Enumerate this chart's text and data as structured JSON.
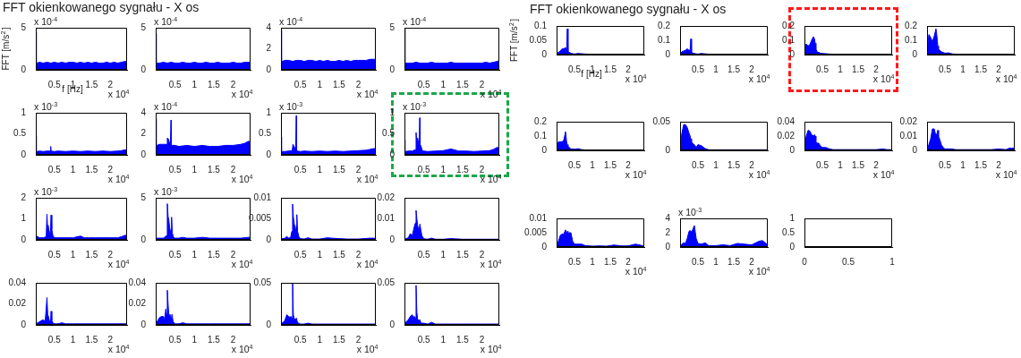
{
  "chart_data": [
    {
      "type": "area",
      "title": "FFT okienkowanego sygnału - X os",
      "ylabel": "FFT [m/s$^{2}$]",
      "xlabel": "f [Hz]",
      "annotations": [
        "x 10$^{-4}$",
        "x 10$^{4}$"
      ],
      "color": "#0000ff",
      "xlim": [
        0,
        2.45
      ],
      "ylim": [
        0,
        5
      ],
      "xticks": [
        0.5,
        1,
        1.5,
        2
      ],
      "yticks": [
        0,
        5
      ],
      "x": [
        0,
        0.015,
        0.03,
        0.1,
        0.2,
        0.3,
        0.4,
        0.5,
        0.6,
        0.7,
        0.8,
        0.9,
        1,
        1.1,
        1.2,
        1.3,
        1.4,
        1.5,
        1.6,
        1.7,
        1.8,
        1.9,
        2,
        2.1,
        2.2,
        2.3,
        2.4,
        2.45
      ],
      "values": [
        4.5,
        0.9,
        0.8,
        0.9,
        0.8,
        0.9,
        0.8,
        0.9,
        0.8,
        0.9,
        0.8,
        0.9,
        0.9,
        0.8,
        0.9,
        0.8,
        0.9,
        0.8,
        0.9,
        0.8,
        0.8,
        0.9,
        0.8,
        0.9,
        0.8,
        0.9,
        1,
        1
      ]
    },
    {
      "type": "area",
      "annotations": [
        "x 10$^{-4}$",
        "x 10$^{4}$"
      ],
      "color": "#0000ff",
      "xlim": [
        0,
        2.45
      ],
      "ylim": [
        0,
        5
      ],
      "xticks": [
        0.5,
        1,
        1.5,
        2
      ],
      "yticks": [
        0,
        5
      ],
      "x": [
        0,
        0.015,
        0.03,
        0.1,
        0.2,
        0.3,
        0.4,
        0.5,
        0.6,
        0.7,
        0.8,
        0.9,
        1,
        1.1,
        1.2,
        1.3,
        1.4,
        1.5,
        1.6,
        1.7,
        1.8,
        1.9,
        2,
        2.1,
        2.2,
        2.3,
        2.4,
        2.45
      ],
      "values": [
        4.3,
        0.9,
        0.8,
        0.8,
        0.9,
        0.8,
        0.9,
        0.8,
        0.8,
        0.9,
        0.8,
        0.8,
        0.9,
        0.8,
        0.8,
        0.9,
        0.8,
        0.8,
        0.9,
        0.8,
        0.8,
        0.8,
        0.9,
        0.8,
        0.8,
        0.9,
        0.9,
        0.9
      ]
    },
    {
      "type": "area",
      "annotations": [
        "x 10$^{-4}$",
        "x 10$^{4}$"
      ],
      "color": "#0000ff",
      "xlim": [
        0,
        2.45
      ],
      "ylim": [
        0,
        4
      ],
      "xticks": [
        0.5,
        1,
        1.5,
        2
      ],
      "yticks": [
        0,
        2,
        4
      ],
      "x": [
        0,
        0.015,
        0.03,
        0.1,
        0.2,
        0.3,
        0.4,
        0.5,
        0.6,
        0.7,
        0.8,
        0.9,
        1,
        1.1,
        1.2,
        1.3,
        1.4,
        1.5,
        1.6,
        1.7,
        1.8,
        1.9,
        2,
        2.1,
        2.2,
        2.3,
        2.4,
        2.45
      ],
      "values": [
        3.8,
        0.9,
        0.8,
        0.9,
        0.9,
        0.8,
        0.9,
        0.9,
        0.8,
        0.9,
        0.9,
        0.8,
        0.9,
        0.8,
        0.9,
        0.8,
        0.8,
        0.9,
        0.8,
        0.9,
        0.8,
        0.9,
        0.9,
        0.9,
        0.9,
        1,
        1,
        1
      ]
    },
    {
      "type": "area",
      "annotations": [
        "x 10$^{-4}$",
        "x 10$^{4}$"
      ],
      "color": "#0000ff",
      "xlim": [
        0,
        2.45
      ],
      "ylim": [
        0,
        5
      ],
      "xticks": [
        0.5,
        1,
        1.5,
        2
      ],
      "yticks": [
        0,
        5
      ],
      "x": [
        0,
        0.015,
        0.03,
        0.1,
        0.2,
        0.3,
        0.4,
        0.5,
        0.6,
        0.7,
        0.8,
        0.9,
        1,
        1.1,
        1.2,
        1.3,
        1.4,
        1.5,
        1.6,
        1.7,
        1.8,
        1.9,
        2,
        2.1,
        2.2,
        2.3,
        2.4,
        2.45
      ],
      "values": [
        5,
        0.9,
        0.8,
        0.8,
        0.8,
        0.9,
        0.8,
        0.8,
        0.8,
        0.9,
        0.8,
        0.8,
        0.8,
        0.8,
        0.9,
        0.8,
        0.8,
        0.8,
        0.8,
        0.8,
        0.8,
        0.8,
        0.8,
        0.9,
        0.8,
        0.9,
        1,
        1.1
      ]
    },
    {
      "type": "area",
      "annotations": [
        "x 10$^{-3}$",
        "x 10$^{4}$"
      ],
      "color": "#0000ff",
      "xlim": [
        0,
        2.45
      ],
      "ylim": [
        0,
        1
      ],
      "xticks": [
        0.5,
        1,
        1.5,
        2
      ],
      "yticks": [
        0,
        0.5,
        1
      ],
      "x": [
        0,
        0.015,
        0.03,
        0.1,
        0.2,
        0.3,
        0.39,
        0.4,
        0.41,
        0.5,
        0.6,
        0.8,
        1,
        1.2,
        1.4,
        1.6,
        1.8,
        2,
        2.2,
        2.3,
        2.4,
        2.45
      ],
      "values": [
        0.45,
        0.1,
        0.08,
        0.09,
        0.08,
        0.09,
        0.09,
        0.2,
        0.09,
        0.08,
        0.09,
        0.08,
        0.09,
        0.08,
        0.09,
        0.08,
        0.09,
        0.08,
        0.09,
        0.1,
        0.12,
        0.1
      ]
    },
    {
      "type": "area",
      "annotations": [
        "x 10$^{-4}$",
        "x 10$^{4}$"
      ],
      "color": "#0000ff",
      "xlim": [
        0,
        2.45
      ],
      "ylim": [
        0,
        4
      ],
      "xticks": [
        0.5,
        1,
        1.5,
        2
      ],
      "yticks": [
        0,
        2,
        4
      ],
      "x": [
        0,
        0.015,
        0.03,
        0.1,
        0.2,
        0.28,
        0.3,
        0.33,
        0.35,
        0.38,
        0.395,
        0.405,
        0.42,
        0.5,
        0.6,
        0.8,
        1,
        1.2,
        1.4,
        1.6,
        1.8,
        2,
        2.2,
        2.3,
        2.4,
        2.45
      ],
      "values": [
        3.4,
        1,
        0.9,
        1,
        1,
        1,
        1.6,
        1.5,
        1.2,
        1,
        3.3,
        1,
        0.9,
        0.9,
        0.8,
        0.9,
        0.8,
        0.9,
        0.8,
        0.8,
        0.9,
        0.9,
        1,
        1.1,
        1.3,
        1.2
      ]
    },
    {
      "type": "area",
      "annotations": [
        "x 10$^{-3}$",
        "x 10$^{4}$"
      ],
      "color": "#0000ff",
      "xlim": [
        0,
        2.45
      ],
      "ylim": [
        0,
        1
      ],
      "xticks": [
        0.5,
        1,
        1.5,
        2
      ],
      "yticks": [
        0,
        0.5,
        1
      ],
      "x": [
        0,
        0.015,
        0.03,
        0.1,
        0.2,
        0.29,
        0.31,
        0.33,
        0.35,
        0.38,
        0.395,
        0.405,
        0.42,
        0.5,
        0.6,
        0.8,
        1,
        1.2,
        1.4,
        1.6,
        1.8,
        2,
        2.2,
        2.3,
        2.4,
        2.45
      ],
      "values": [
        0.42,
        0.1,
        0.08,
        0.08,
        0.09,
        0.1,
        0.25,
        0.22,
        0.18,
        0.12,
        0.93,
        0.12,
        0.09,
        0.08,
        0.09,
        0.08,
        0.09,
        0.08,
        0.09,
        0.08,
        0.09,
        0.1,
        0.11,
        0.13,
        0.15,
        0.14
      ]
    },
    {
      "type": "area",
      "annotations": [
        "x 10$^{-3}$",
        "x 10$^{4}$"
      ],
      "color": "#0000ff",
      "xlim": [
        0,
        2.45
      ],
      "ylim": [
        0,
        1
      ],
      "xticks": [
        0.5,
        1,
        1.5,
        2
      ],
      "yticks": [
        0,
        0.5,
        1
      ],
      "x": [
        0,
        0.015,
        0.03,
        0.1,
        0.2,
        0.28,
        0.3,
        0.32,
        0.34,
        0.36,
        0.38,
        0.395,
        0.405,
        0.43,
        0.46,
        0.5,
        0.6,
        0.8,
        1,
        1.2,
        1.4,
        1.6,
        1.8,
        2,
        2.2,
        2.3,
        2.4,
        2.45
      ],
      "values": [
        0.35,
        0.1,
        0.08,
        0.09,
        0.09,
        0.12,
        0.53,
        0.3,
        0.4,
        0.3,
        0.22,
        0.88,
        0.25,
        0.2,
        0.1,
        0.09,
        0.08,
        0.09,
        0.1,
        0.14,
        0.09,
        0.09,
        0.08,
        0.09,
        0.1,
        0.13,
        0.18,
        0.15
      ]
    },
    {
      "type": "area",
      "annotations": [
        "x 10$^{-3}$",
        "x 10$^{4}$"
      ],
      "color": "#0000ff",
      "xlim": [
        0,
        2.45
      ],
      "ylim": [
        0,
        2
      ],
      "xticks": [
        0.5,
        1,
        1.5,
        2
      ],
      "yticks": [
        0,
        1,
        2
      ],
      "x": [
        0,
        0.1,
        0.2,
        0.28,
        0.3,
        0.315,
        0.33,
        0.35,
        0.37,
        0.39,
        0.41,
        0.43,
        0.46,
        0.5,
        0.6,
        0.8,
        1,
        1.2,
        1.3,
        1.4,
        1.6,
        1.8,
        2,
        2.2,
        2.3,
        2.4,
        2.45
      ],
      "values": [
        0.2,
        0.1,
        0.1,
        0.15,
        1.22,
        0.6,
        0.7,
        0.5,
        0.35,
        0.2,
        1.18,
        0.5,
        0.2,
        0.1,
        0.1,
        0.1,
        0.1,
        0.18,
        0.1,
        0.1,
        0.1,
        0.1,
        0.1,
        0.1,
        0.15,
        0.22,
        0.2
      ]
    },
    {
      "type": "area",
      "annotations": [
        "x 10$^{-3}$",
        "x 10$^{4}$"
      ],
      "color": "#0000ff",
      "xlim": [
        0,
        2.45
      ],
      "ylim": [
        0,
        5
      ],
      "xticks": [
        0.5,
        1,
        1.5,
        2
      ],
      "yticks": [
        0,
        5
      ],
      "x": [
        0,
        0.1,
        0.2,
        0.28,
        0.3,
        0.32,
        0.34,
        0.36,
        0.38,
        0.4,
        0.41,
        0.43,
        0.46,
        0.5,
        0.6,
        0.7,
        0.8,
        1,
        1.2,
        1.4,
        1.6,
        1.8,
        2,
        2.2,
        2.4,
        2.45
      ],
      "values": [
        0.2,
        0.2,
        0.2,
        0.5,
        4.3,
        2.8,
        2.3,
        1.5,
        1,
        1.2,
        2.7,
        0.8,
        0.3,
        0.2,
        0.2,
        0.3,
        0.2,
        0.2,
        0.3,
        0.2,
        0.2,
        0.2,
        0.2,
        0.2,
        0.3,
        0.3
      ]
    },
    {
      "type": "area",
      "annotations": [
        "x 10$^{4}$"
      ],
      "color": "#0000ff",
      "xlim": [
        0,
        2.45
      ],
      "ylim": [
        0,
        0.01
      ],
      "xticks": [
        0.5,
        1,
        1.5,
        2
      ],
      "yticks": [
        0,
        0.005,
        0.01
      ],
      "x": [
        0,
        0.1,
        0.15,
        0.2,
        0.25,
        0.28,
        0.3,
        0.32,
        0.34,
        0.36,
        0.38,
        0.4,
        0.41,
        0.43,
        0.46,
        0.5,
        0.6,
        0.7,
        0.8,
        1,
        1.2,
        1.3,
        1.5,
        1.7,
        2,
        2.3,
        2.4,
        2.45
      ],
      "values": [
        0.0002,
        0.0004,
        0.0008,
        0.0004,
        0.0006,
        0.002,
        0.0085,
        0.0055,
        0.004,
        0.003,
        0.002,
        0.0035,
        0.006,
        0.002,
        0.0008,
        0.0003,
        0.0002,
        0.0005,
        0.0002,
        0.0002,
        0.0005,
        0.0004,
        0.0003,
        0.0002,
        0.0002,
        0.0004,
        0.0004,
        0.0003
      ]
    },
    {
      "type": "area",
      "annotations": [
        "x 10$^{4}$"
      ],
      "color": "#0000ff",
      "xlim": [
        0,
        2.45
      ],
      "ylim": [
        0,
        0.02
      ],
      "xticks": [
        0.5,
        1,
        1.5,
        2
      ],
      "yticks": [
        0,
        0.01,
        0.02
      ],
      "x": [
        0,
        0.1,
        0.15,
        0.2,
        0.25,
        0.28,
        0.3,
        0.32,
        0.34,
        0.37,
        0.4,
        0.42,
        0.45,
        0.5,
        0.6,
        0.7,
        0.8,
        1,
        1.2,
        1.3,
        1.5,
        1.8,
        2.1,
        2.4,
        2.45
      ],
      "values": [
        0.0003,
        0.001,
        0.003,
        0.002,
        0.006,
        0.008,
        0.014,
        0.01,
        0.007,
        0.004,
        0.0075,
        0.005,
        0.002,
        0.0005,
        0.0003,
        0.0008,
        0.0003,
        0.0003,
        0.0006,
        0.0005,
        0.0003,
        0.0003,
        0.0003,
        0.0003,
        0.0003
      ]
    },
    {
      "type": "area",
      "annotations": [
        "x 10$^{4}$"
      ],
      "color": "#0000ff",
      "xlim": [
        0,
        2.45
      ],
      "ylim": [
        0,
        0.04
      ],
      "xticks": [
        0.5,
        1,
        1.5,
        2
      ],
      "yticks": [
        0,
        0.02,
        0.04
      ],
      "x": [
        0,
        0.05,
        0.1,
        0.15,
        0.2,
        0.25,
        0.28,
        0.3,
        0.32,
        0.34,
        0.37,
        0.4,
        0.41,
        0.43,
        0.46,
        0.5,
        0.6,
        0.7,
        0.8,
        1,
        1.4,
        1.8,
        2.2,
        2.45
      ],
      "values": [
        0.001,
        0.002,
        0.003,
        0.004,
        0.005,
        0.003,
        0.016,
        0.026,
        0.01,
        0.008,
        0.003,
        0.005,
        0.013,
        0.004,
        0.002,
        0.001,
        0.001,
        0.002,
        0.001,
        0.001,
        0.001,
        0.001,
        0.001,
        0.001
      ]
    },
    {
      "type": "area",
      "annotations": [
        "x 10$^{4}$"
      ],
      "color": "#0000ff",
      "xlim": [
        0,
        2.45
      ],
      "ylim": [
        0,
        0.04
      ],
      "xticks": [
        0.5,
        1,
        1.5,
        2
      ],
      "yticks": [
        0,
        0.02,
        0.04
      ],
      "x": [
        0,
        0.05,
        0.1,
        0.15,
        0.2,
        0.23,
        0.26,
        0.28,
        0.3,
        0.32,
        0.34,
        0.37,
        0.4,
        0.42,
        0.45,
        0.5,
        0.6,
        0.7,
        0.8,
        1,
        1.4,
        1.8,
        2.2,
        2.45
      ],
      "values": [
        0.001,
        0.004,
        0.007,
        0.008,
        0.008,
        0.005,
        0.015,
        0.01,
        0.033,
        0.02,
        0.008,
        0.01,
        0.004,
        0.01,
        0.003,
        0.001,
        0.001,
        0.002,
        0.001,
        0.001,
        0.001,
        0.001,
        0.001,
        0.001
      ]
    },
    {
      "type": "area",
      "annotations": [
        "x 10$^{4}$"
      ],
      "color": "#0000ff",
      "xlim": [
        0,
        2.45
      ],
      "ylim": [
        0,
        0.05
      ],
      "xticks": [
        0.5,
        1,
        1.5,
        2
      ],
      "yticks": [
        0,
        0.05
      ],
      "x": [
        0,
        0.05,
        0.1,
        0.15,
        0.2,
        0.23,
        0.26,
        0.28,
        0.3,
        0.32,
        0.34,
        0.37,
        0.4,
        0.42,
        0.45,
        0.5,
        0.6,
        0.7,
        0.8,
        1,
        1.4,
        1.8,
        2.2,
        2.45
      ],
      "values": [
        0.001,
        0.003,
        0.005,
        0.012,
        0.01,
        0.009,
        0.01,
        0.008,
        0.05,
        0.012,
        0.008,
        0.006,
        0.008,
        0.004,
        0.002,
        0.001,
        0.001,
        0.002,
        0.001,
        0.001,
        0.001,
        0.001,
        0.001,
        0.001
      ]
    },
    {
      "type": "area",
      "annotations": [
        "x 10$^{4}$"
      ],
      "color": "#0000ff",
      "xlim": [
        0,
        2.45
      ],
      "ylim": [
        0,
        0.05
      ],
      "xticks": [
        0.5,
        1,
        1.5,
        2
      ],
      "yticks": [
        0,
        0.05
      ],
      "x": [
        0,
        0.05,
        0.1,
        0.15,
        0.2,
        0.23,
        0.26,
        0.28,
        0.3,
        0.32,
        0.34,
        0.37,
        0.4,
        0.42,
        0.45,
        0.5,
        0.6,
        0.7,
        0.8,
        1,
        1.4,
        1.8,
        2.2,
        2.45
      ],
      "values": [
        0.001,
        0.004,
        0.006,
        0.01,
        0.012,
        0.009,
        0.01,
        0.008,
        0.047,
        0.015,
        0.007,
        0.005,
        0.006,
        0.003,
        0.002,
        0.002,
        0.001,
        0.003,
        0.001,
        0.001,
        0.001,
        0.001,
        0.001,
        0.001
      ]
    },
    {
      "type": "area",
      "title": "FFT okienkowanego sygnału - X os",
      "ylabel": "FFT [m/s$^{2}$]",
      "xlabel": "f [Hz]",
      "annotations": [
        "x 10$^{4}$"
      ],
      "color": "#0000ff",
      "xlim": [
        0,
        2.45
      ],
      "ylim": [
        0,
        0.1
      ],
      "xticks": [
        0.5,
        1,
        1.5,
        2
      ],
      "yticks": [
        0,
        0.05,
        0.1
      ],
      "x": [
        0,
        0.05,
        0.1,
        0.15,
        0.2,
        0.25,
        0.28,
        0.3,
        0.32,
        0.35,
        0.4,
        0.45,
        0.5,
        0.6,
        0.7,
        0.8,
        1,
        1.2,
        1.4,
        1.6,
        1.8,
        2,
        2.2,
        2.3,
        2.45
      ],
      "values": [
        0.002,
        0.008,
        0.012,
        0.02,
        0.02,
        0.025,
        0.015,
        0.09,
        0.01,
        0.008,
        0.005,
        0.003,
        0.002,
        0.004,
        0.003,
        0.002,
        0.001,
        0.001,
        0.001,
        0.001,
        0.001,
        0.001,
        0.001,
        0.001,
        0.001
      ]
    },
    {
      "type": "area",
      "annotations": [
        "x 10$^{4}$"
      ],
      "color": "#0000ff",
      "xlim": [
        0,
        2.45
      ],
      "ylim": [
        0,
        0.2
      ],
      "xticks": [
        0.5,
        1,
        1.5,
        2
      ],
      "yticks": [
        0,
        0.1,
        0.2
      ],
      "x": [
        0,
        0.05,
        0.1,
        0.15,
        0.2,
        0.25,
        0.28,
        0.3,
        0.32,
        0.35,
        0.4,
        0.45,
        0.5,
        0.6,
        0.7,
        0.8,
        1,
        1.2,
        1.4,
        1.6,
        1.8,
        2,
        2.2,
        2.3,
        2.45
      ],
      "values": [
        0.005,
        0.02,
        0.025,
        0.03,
        0.04,
        0.03,
        0.03,
        0.11,
        0.02,
        0.01,
        0.008,
        0.005,
        0.004,
        0.008,
        0.005,
        0.003,
        0.002,
        0.002,
        0.002,
        0.002,
        0.002,
        0.002,
        0.002,
        0.002,
        0.002
      ]
    },
    {
      "type": "area",
      "annotations": [
        "x 10$^{4}$"
      ],
      "color": "#0000ff",
      "xlim": [
        0,
        2.45
      ],
      "ylim": [
        0,
        0.2
      ],
      "xticks": [
        0.5,
        1,
        1.5,
        2
      ],
      "yticks": [
        0,
        0.1,
        0.2
      ],
      "x": [
        0,
        0.05,
        0.1,
        0.15,
        0.2,
        0.25,
        0.28,
        0.3,
        0.32,
        0.35,
        0.4,
        0.45,
        0.5,
        0.6,
        0.7,
        0.8,
        1,
        1.2,
        1.4,
        1.6,
        1.8,
        2,
        2.2,
        2.3,
        2.45
      ],
      "values": [
        0.02,
        0.075,
        0.06,
        0.07,
        0.1,
        0.125,
        0.11,
        0.08,
        0.04,
        0.02,
        0.015,
        0.01,
        0.008,
        0.006,
        0.004,
        0.003,
        0.002,
        0.002,
        0.002,
        0.002,
        0.002,
        0.002,
        0.002,
        0.002,
        0.002
      ]
    },
    {
      "type": "area",
      "annotations": [
        "x 10$^{4}$"
      ],
      "color": "#0000ff",
      "xlim": [
        0,
        2.45
      ],
      "ylim": [
        0,
        0.2
      ],
      "xticks": [
        0.5,
        1,
        1.5,
        2
      ],
      "yticks": [
        0,
        0.1,
        0.2
      ],
      "x": [
        0,
        0.05,
        0.1,
        0.15,
        0.2,
        0.25,
        0.28,
        0.3,
        0.32,
        0.35,
        0.4,
        0.45,
        0.5,
        0.6,
        0.7,
        0.8,
        1,
        1.2,
        1.4,
        1.6,
        1.8,
        2,
        2.2,
        2.3,
        2.45
      ],
      "values": [
        0.02,
        0.14,
        0.12,
        0.09,
        0.13,
        0.18,
        0.12,
        0.06,
        0.04,
        0.03,
        0.02,
        0.015,
        0.01,
        0.012,
        0.005,
        0.003,
        0.002,
        0.002,
        0.002,
        0.002,
        0.002,
        0.002,
        0.002,
        0.002,
        0.002
      ]
    },
    {
      "type": "area",
      "annotations": [
        "x 10$^{4}$"
      ],
      "color": "#0000ff",
      "xlim": [
        0,
        2.45
      ],
      "ylim": [
        0,
        0.2
      ],
      "xticks": [
        0.5,
        1,
        1.5,
        2
      ],
      "yticks": [
        0,
        0.1,
        0.2
      ],
      "x": [
        0,
        0.05,
        0.1,
        0.15,
        0.2,
        0.25,
        0.28,
        0.3,
        0.32,
        0.35,
        0.4,
        0.45,
        0.5,
        0.6,
        0.7,
        0.8,
        1,
        1.2,
        1.4,
        1.6,
        1.8,
        2,
        2.2,
        2.3,
        2.45
      ],
      "values": [
        0.01,
        0.06,
        0.06,
        0.06,
        0.07,
        0.13,
        0.06,
        0.04,
        0.03,
        0.02,
        0.01,
        0.01,
        0.008,
        0.012,
        0.005,
        0.003,
        0.002,
        0.002,
        0.002,
        0.002,
        0.002,
        0.002,
        0.002,
        0.002,
        0.002
      ]
    },
    {
      "type": "area",
      "annotations": [
        "x 10$^{4}$"
      ],
      "color": "#0000ff",
      "xlim": [
        0,
        2.45
      ],
      "ylim": [
        0,
        0.05
      ],
      "xticks": [
        0.5,
        1,
        1.5,
        2
      ],
      "yticks": [
        0,
        0.05
      ],
      "x": [
        0,
        0.05,
        0.1,
        0.15,
        0.2,
        0.25,
        0.28,
        0.3,
        0.32,
        0.35,
        0.4,
        0.45,
        0.5,
        0.6,
        0.7,
        0.8,
        1,
        1.2,
        1.4,
        1.6,
        1.8,
        2,
        2.2,
        2.3,
        2.45
      ],
      "values": [
        0.005,
        0.03,
        0.045,
        0.045,
        0.04,
        0.03,
        0.025,
        0.02,
        0.015,
        0.012,
        0.01,
        0.005,
        0.01,
        0.008,
        0.003,
        0.001,
        0.001,
        0.001,
        0.001,
        0.001,
        0.001,
        0.001,
        0.001,
        0.001,
        0.001
      ]
    },
    {
      "type": "area",
      "annotations": [
        "x 10$^{4}$"
      ],
      "color": "#0000ff",
      "xlim": [
        0,
        2.45
      ],
      "ylim": [
        0,
        0.04
      ],
      "xticks": [
        0.5,
        1,
        1.5,
        2
      ],
      "yticks": [
        0,
        0.02,
        0.04
      ],
      "x": [
        0,
        0.05,
        0.1,
        0.15,
        0.2,
        0.25,
        0.28,
        0.3,
        0.32,
        0.35,
        0.4,
        0.45,
        0.5,
        0.6,
        0.7,
        0.8,
        1,
        1.2,
        1.4,
        1.6,
        1.8,
        2,
        2.2,
        2.3,
        2.45
      ],
      "values": [
        0.003,
        0.02,
        0.028,
        0.027,
        0.022,
        0.02,
        0.022,
        0.02,
        0.012,
        0.01,
        0.01,
        0.006,
        0.004,
        0.004,
        0.002,
        0.001,
        0.001,
        0.001,
        0.001,
        0.001,
        0.001,
        0.001,
        0.002,
        0.001,
        0.001
      ]
    },
    {
      "type": "area",
      "annotations": [
        "x 10$^{4}$"
      ],
      "color": "#0000ff",
      "xlim": [
        0,
        2.45
      ],
      "ylim": [
        0,
        0.02
      ],
      "xticks": [
        0.5,
        1,
        1.5,
        2
      ],
      "yticks": [
        0,
        0.01,
        0.02
      ],
      "x": [
        0,
        0.05,
        0.1,
        0.15,
        0.2,
        0.25,
        0.28,
        0.3,
        0.32,
        0.35,
        0.4,
        0.45,
        0.5,
        0.6,
        0.7,
        0.8,
        1,
        1.2,
        1.4,
        1.6,
        1.8,
        2,
        2.2,
        2.3,
        2.45
      ],
      "values": [
        0.001,
        0.004,
        0.008,
        0.015,
        0.015,
        0.01,
        0.012,
        0.014,
        0.01,
        0.008,
        0.004,
        0.002,
        0.001,
        0.001,
        0.001,
        0.0005,
        0.0005,
        0.0005,
        0.0005,
        0.0005,
        0.0005,
        0.001,
        0.0005,
        0.0015,
        0.0015
      ]
    },
    {
      "type": "area",
      "annotations": [
        "x 10$^{4}$"
      ],
      "color": "#0000ff",
      "xlim": [
        0,
        2.45
      ],
      "ylim": [
        0,
        0.01
      ],
      "xticks": [
        0.5,
        1,
        1.5,
        2
      ],
      "yticks": [
        0,
        0.005,
        0.01
      ],
      "x": [
        0,
        0.05,
        0.1,
        0.15,
        0.2,
        0.25,
        0.28,
        0.3,
        0.32,
        0.35,
        0.4,
        0.45,
        0.5,
        0.6,
        0.7,
        0.8,
        1,
        1.2,
        1.4,
        1.6,
        1.8,
        2,
        2.2,
        2.3,
        2.45
      ],
      "values": [
        0.0005,
        0.002,
        0.004,
        0.0045,
        0.0045,
        0.006,
        0.004,
        0.0055,
        0.004,
        0.005,
        0.005,
        0.002,
        0.001,
        0.001,
        0.001,
        0.0005,
        0.0003,
        0.0004,
        0.0003,
        0.0007,
        0.0004,
        0.0004,
        0.001,
        0.0008,
        0.0003
      ]
    },
    {
      "type": "area",
      "annotations": [
        "x 10$^{-3}$",
        "x 10$^{4}$"
      ],
      "color": "#0000ff",
      "xlim": [
        0,
        2.45
      ],
      "ylim": [
        0,
        4
      ],
      "xticks": [
        0.5,
        1,
        1.5,
        2
      ],
      "yticks": [
        0,
        2,
        4
      ],
      "x": [
        0,
        0.05,
        0.1,
        0.15,
        0.2,
        0.25,
        0.28,
        0.3,
        0.32,
        0.35,
        0.4,
        0.45,
        0.5,
        0.6,
        0.7,
        0.8,
        1,
        1.2,
        1.4,
        1.6,
        1.8,
        2,
        2.2,
        2.3,
        2.45
      ],
      "values": [
        0.1,
        0.4,
        0.6,
        0.5,
        1.2,
        2.2,
        2.3,
        2.2,
        2,
        2.4,
        3,
        1.2,
        0.5,
        0.4,
        0.6,
        0.2,
        0.2,
        0.3,
        0.2,
        0.5,
        0.4,
        0.3,
        0.8,
        0.9,
        0.3
      ]
    },
    {
      "type": "line",
      "color": "#0000ff",
      "xlim": [
        0,
        1
      ],
      "ylim": [
        0,
        1
      ],
      "xticks": [
        0,
        0.5,
        1
      ],
      "yticks": [
        0,
        0.5,
        1
      ]
    }
  ]
}
